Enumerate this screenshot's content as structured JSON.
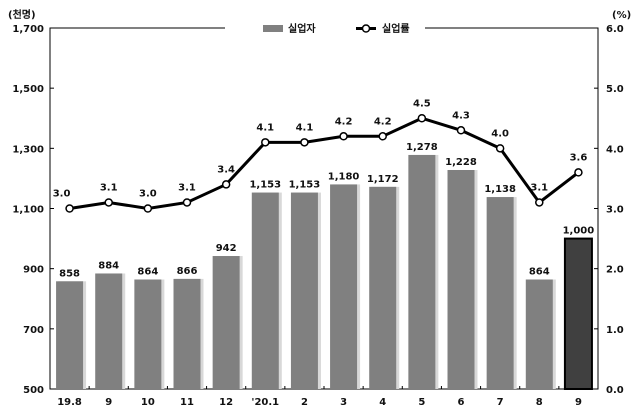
{
  "chart_data": {
    "type": "bar+line",
    "categories": [
      "19.8",
      "9",
      "10",
      "11",
      "12",
      "'20.1",
      "2",
      "3",
      "4",
      "5",
      "6",
      "7",
      "8",
      "9"
    ],
    "series": [
      {
        "name": "실업자",
        "type": "bar",
        "axis": "left",
        "values": [
          858,
          884,
          864,
          866,
          942,
          1153,
          1153,
          1180,
          1172,
          1278,
          1228,
          1138,
          864,
          1000
        ],
        "labels": [
          "858",
          "884",
          "864",
          "866",
          "942",
          "1,153",
          "1,153",
          "1,180",
          "1,172",
          "1,278",
          "1,228",
          "1,138",
          "864",
          "1,000"
        ]
      },
      {
        "name": "실업률",
        "type": "line",
        "axis": "right",
        "values": [
          3.0,
          3.1,
          3.0,
          3.1,
          3.4,
          4.1,
          4.1,
          4.2,
          4.2,
          4.5,
          4.3,
          4.0,
          3.1,
          3.6
        ],
        "labels": [
          "3.0",
          "3.1",
          "3.0",
          "3.1",
          "3.4",
          "4.1",
          "4.1",
          "4.2",
          "4.2",
          "4.5",
          "4.3",
          "4.0",
          "3.1",
          "3.6"
        ]
      }
    ],
    "ylabel": "(천명)",
    "y2label": "(%)",
    "ylim": [
      500,
      1700
    ],
    "y2lim": [
      0,
      6
    ],
    "yticks": [
      "500",
      "700",
      "900",
      "1,100",
      "1,300",
      "1,500",
      "1,700"
    ],
    "y2ticks": [
      "0.0",
      "1.0",
      "2.0",
      "3.0",
      "4.0",
      "5.0",
      "6.0"
    ],
    "legend": "top-center",
    "grid": false,
    "colors": {
      "bar": "#808080",
      "highlight_bar": "#404040",
      "line": "#000000"
    }
  }
}
